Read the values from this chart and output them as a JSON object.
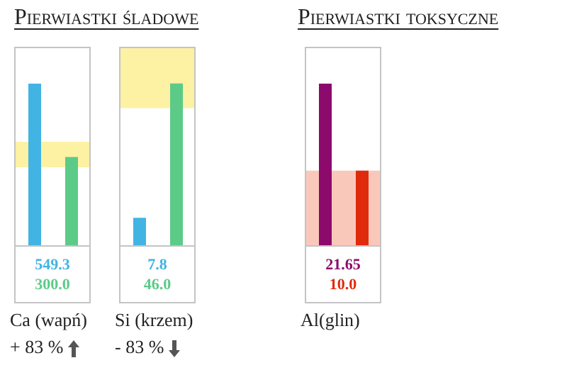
{
  "chart_data": [
    {
      "type": "bar",
      "title": "Pierwiastki śladowe",
      "xlabel": "Ca (wapń)",
      "annotations": [
        "+ 83 %"
      ],
      "categories": [
        null,
        null
      ],
      "values": [
        549.3,
        300.0
      ],
      "value_labels": [
        "549.3",
        "300.0"
      ],
      "colors": [
        "#41b4e4",
        "#5ccb87"
      ],
      "ylim": [
        0,
        670
      ],
      "bands": [
        {
          "axis": "y",
          "from": 265,
          "to": 352,
          "color": "#fdf1a4"
        }
      ]
    },
    {
      "type": "bar",
      "xlabel": "Si (krzem)",
      "annotations": [
        "- 83 %"
      ],
      "categories": [
        null,
        null
      ],
      "values": [
        7.8,
        46.0
      ],
      "value_labels": [
        "7.8",
        "46.0"
      ],
      "colors": [
        "#41b4e4",
        "#5ccb87"
      ],
      "ylim": [
        0,
        56
      ],
      "bands": [
        {
          "axis": "y",
          "from": 39,
          "to": 56,
          "color": "#fdf1a4"
        }
      ]
    },
    {
      "type": "bar",
      "title": "Pierwiastki toksyczne",
      "xlabel": "Al(glin)",
      "categories": [
        null,
        null
      ],
      "values": [
        21.65,
        10.0
      ],
      "value_labels": [
        "21.65",
        "10.0"
      ],
      "colors": [
        "#8c0a6c",
        "#e02a0c"
      ],
      "ylim": [
        0,
        26.4
      ],
      "bands": [
        {
          "axis": "y",
          "from": 0,
          "to": 10,
          "color": "#fac8ba"
        }
      ]
    }
  ]
}
